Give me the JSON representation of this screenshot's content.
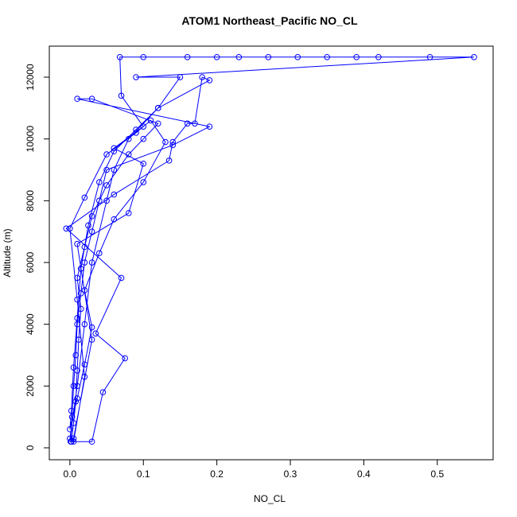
{
  "chart_data": {
    "type": "line",
    "title": "ATOM1 Northeast_Pacific NO_CL",
    "x_label": "NO_CL",
    "y_label": "Altitude (m)",
    "xlim": [
      -0.028,
      0.576
    ],
    "ylim": [
      -386,
      13005
    ],
    "xticks": [
      {
        "value": 0,
        "label": "0.0"
      },
      {
        "value": 0.1,
        "label": "0.1"
      },
      {
        "value": 0.2,
        "label": "0.2"
      },
      {
        "value": 0.3,
        "label": "0.3"
      },
      {
        "value": 0.4,
        "label": "0.4"
      },
      {
        "value": 0.5,
        "label": "0.5"
      }
    ],
    "yticks": [
      0,
      2000,
      4000,
      6000,
      8000,
      10000,
      12000
    ],
    "grid": false,
    "x": [
      0.002,
      0.005,
      0.008,
      0.01,
      0.012,
      0.015,
      0.01,
      0.02,
      0.03,
      0.05,
      0.08,
      0.1,
      0.12,
      0.03,
      0.01,
      0.19,
      0.14,
      0.05,
      0.04,
      0.03,
      0.02,
      0.015,
      0.01,
      0.008,
      0.005,
      0.003,
      0.001,
      0.03,
      0.045,
      0.075,
      0.035,
      0.07,
      -0.005,
      0.06,
      0.135,
      0.14,
      0.16,
      0.17,
      0.18,
      0.19,
      0.12,
      0.08,
      0.06,
      0.05,
      0.03,
      0.02,
      0.01,
      0.0,
      0.005,
      0.03,
      0.01,
      0.08,
      0.1,
      0.06,
      0.1,
      0.07,
      0.068,
      0.1,
      0.16,
      0.2,
      0.23,
      0.27,
      0.31,
      0.35,
      0.39,
      0.42,
      0.49,
      0.55,
      0.09,
      0.15,
      0.12,
      0.09,
      0.06,
      0.04,
      0.025,
      0.015,
      0.01,
      0.005,
      0.002,
      0.0,
      0.01,
      0.02,
      0.03,
      0.02,
      0.04,
      0.06,
      0.1,
      0.13,
      0.11,
      0.09,
      0.05,
      0.02,
      0.0,
      0.01,
      0.02,
      0.005
    ],
    "series": [
      {
        "name": "NO_CL",
        "color": "#0000ff",
        "values": [
          200,
          800,
          1500,
          2500,
          3500,
          4500,
          5500,
          6500,
          7500,
          8500,
          9500,
          10000,
          10500,
          11300,
          11300,
          10400,
          9800,
          9000,
          8000,
          7000,
          6000,
          5000,
          4000,
          3000,
          2000,
          1000,
          200,
          200,
          1800,
          2900,
          3700,
          5500,
          7100,
          8200,
          9300,
          9900,
          10500,
          10500,
          12000,
          11900,
          11000,
          10000,
          9000,
          8000,
          6000,
          4000,
          2000,
          300,
          300,
          3500,
          6600,
          7600,
          9200,
          9700,
          10400,
          11400,
          12650,
          12650,
          12650,
          12650,
          12650,
          12650,
          12650,
          12650,
          12650,
          12650,
          12650,
          12650,
          12000,
          12000,
          11000,
          10300,
          9600,
          8600,
          7200,
          5800,
          4200,
          2600,
          1200,
          600,
          1600,
          2700,
          3900,
          5100,
          6300,
          7400,
          8600,
          9900,
          10600,
          10200,
          9500,
          8100,
          7100,
          4800,
          2300,
          200
        ]
      }
    ]
  }
}
